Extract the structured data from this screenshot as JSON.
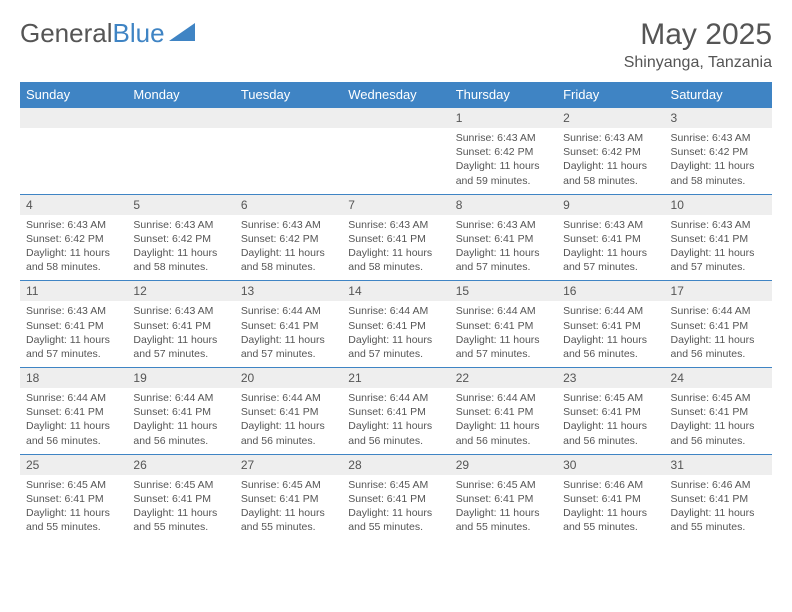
{
  "logo": {
    "text_left": "General",
    "text_right": "Blue"
  },
  "header": {
    "month_title": "May 2025",
    "location": "Shinyanga, Tanzania"
  },
  "weekdays": [
    "Sunday",
    "Monday",
    "Tuesday",
    "Wednesday",
    "Thursday",
    "Friday",
    "Saturday"
  ],
  "colors": {
    "header_bg": "#3f84c4",
    "header_text": "#ffffff",
    "daynum_bg": "#eeeeee",
    "text": "#555555",
    "cell_border": "#3f84c4"
  },
  "grid": [
    [
      {
        "day": "",
        "lines": []
      },
      {
        "day": "",
        "lines": []
      },
      {
        "day": "",
        "lines": []
      },
      {
        "day": "",
        "lines": []
      },
      {
        "day": "1",
        "lines": [
          "Sunrise: 6:43 AM",
          "Sunset: 6:42 PM",
          "Daylight: 11 hours",
          "and 59 minutes."
        ]
      },
      {
        "day": "2",
        "lines": [
          "Sunrise: 6:43 AM",
          "Sunset: 6:42 PM",
          "Daylight: 11 hours",
          "and 58 minutes."
        ]
      },
      {
        "day": "3",
        "lines": [
          "Sunrise: 6:43 AM",
          "Sunset: 6:42 PM",
          "Daylight: 11 hours",
          "and 58 minutes."
        ]
      }
    ],
    [
      {
        "day": "4",
        "lines": [
          "Sunrise: 6:43 AM",
          "Sunset: 6:42 PM",
          "Daylight: 11 hours",
          "and 58 minutes."
        ]
      },
      {
        "day": "5",
        "lines": [
          "Sunrise: 6:43 AM",
          "Sunset: 6:42 PM",
          "Daylight: 11 hours",
          "and 58 minutes."
        ]
      },
      {
        "day": "6",
        "lines": [
          "Sunrise: 6:43 AM",
          "Sunset: 6:42 PM",
          "Daylight: 11 hours",
          "and 58 minutes."
        ]
      },
      {
        "day": "7",
        "lines": [
          "Sunrise: 6:43 AM",
          "Sunset: 6:41 PM",
          "Daylight: 11 hours",
          "and 58 minutes."
        ]
      },
      {
        "day": "8",
        "lines": [
          "Sunrise: 6:43 AM",
          "Sunset: 6:41 PM",
          "Daylight: 11 hours",
          "and 57 minutes."
        ]
      },
      {
        "day": "9",
        "lines": [
          "Sunrise: 6:43 AM",
          "Sunset: 6:41 PM",
          "Daylight: 11 hours",
          "and 57 minutes."
        ]
      },
      {
        "day": "10",
        "lines": [
          "Sunrise: 6:43 AM",
          "Sunset: 6:41 PM",
          "Daylight: 11 hours",
          "and 57 minutes."
        ]
      }
    ],
    [
      {
        "day": "11",
        "lines": [
          "Sunrise: 6:43 AM",
          "Sunset: 6:41 PM",
          "Daylight: 11 hours",
          "and 57 minutes."
        ]
      },
      {
        "day": "12",
        "lines": [
          "Sunrise: 6:43 AM",
          "Sunset: 6:41 PM",
          "Daylight: 11 hours",
          "and 57 minutes."
        ]
      },
      {
        "day": "13",
        "lines": [
          "Sunrise: 6:44 AM",
          "Sunset: 6:41 PM",
          "Daylight: 11 hours",
          "and 57 minutes."
        ]
      },
      {
        "day": "14",
        "lines": [
          "Sunrise: 6:44 AM",
          "Sunset: 6:41 PM",
          "Daylight: 11 hours",
          "and 57 minutes."
        ]
      },
      {
        "day": "15",
        "lines": [
          "Sunrise: 6:44 AM",
          "Sunset: 6:41 PM",
          "Daylight: 11 hours",
          "and 57 minutes."
        ]
      },
      {
        "day": "16",
        "lines": [
          "Sunrise: 6:44 AM",
          "Sunset: 6:41 PM",
          "Daylight: 11 hours",
          "and 56 minutes."
        ]
      },
      {
        "day": "17",
        "lines": [
          "Sunrise: 6:44 AM",
          "Sunset: 6:41 PM",
          "Daylight: 11 hours",
          "and 56 minutes."
        ]
      }
    ],
    [
      {
        "day": "18",
        "lines": [
          "Sunrise: 6:44 AM",
          "Sunset: 6:41 PM",
          "Daylight: 11 hours",
          "and 56 minutes."
        ]
      },
      {
        "day": "19",
        "lines": [
          "Sunrise: 6:44 AM",
          "Sunset: 6:41 PM",
          "Daylight: 11 hours",
          "and 56 minutes."
        ]
      },
      {
        "day": "20",
        "lines": [
          "Sunrise: 6:44 AM",
          "Sunset: 6:41 PM",
          "Daylight: 11 hours",
          "and 56 minutes."
        ]
      },
      {
        "day": "21",
        "lines": [
          "Sunrise: 6:44 AM",
          "Sunset: 6:41 PM",
          "Daylight: 11 hours",
          "and 56 minutes."
        ]
      },
      {
        "day": "22",
        "lines": [
          "Sunrise: 6:44 AM",
          "Sunset: 6:41 PM",
          "Daylight: 11 hours",
          "and 56 minutes."
        ]
      },
      {
        "day": "23",
        "lines": [
          "Sunrise: 6:45 AM",
          "Sunset: 6:41 PM",
          "Daylight: 11 hours",
          "and 56 minutes."
        ]
      },
      {
        "day": "24",
        "lines": [
          "Sunrise: 6:45 AM",
          "Sunset: 6:41 PM",
          "Daylight: 11 hours",
          "and 56 minutes."
        ]
      }
    ],
    [
      {
        "day": "25",
        "lines": [
          "Sunrise: 6:45 AM",
          "Sunset: 6:41 PM",
          "Daylight: 11 hours",
          "and 55 minutes."
        ]
      },
      {
        "day": "26",
        "lines": [
          "Sunrise: 6:45 AM",
          "Sunset: 6:41 PM",
          "Daylight: 11 hours",
          "and 55 minutes."
        ]
      },
      {
        "day": "27",
        "lines": [
          "Sunrise: 6:45 AM",
          "Sunset: 6:41 PM",
          "Daylight: 11 hours",
          "and 55 minutes."
        ]
      },
      {
        "day": "28",
        "lines": [
          "Sunrise: 6:45 AM",
          "Sunset: 6:41 PM",
          "Daylight: 11 hours",
          "and 55 minutes."
        ]
      },
      {
        "day": "29",
        "lines": [
          "Sunrise: 6:45 AM",
          "Sunset: 6:41 PM",
          "Daylight: 11 hours",
          "and 55 minutes."
        ]
      },
      {
        "day": "30",
        "lines": [
          "Sunrise: 6:46 AM",
          "Sunset: 6:41 PM",
          "Daylight: 11 hours",
          "and 55 minutes."
        ]
      },
      {
        "day": "31",
        "lines": [
          "Sunrise: 6:46 AM",
          "Sunset: 6:41 PM",
          "Daylight: 11 hours",
          "and 55 minutes."
        ]
      }
    ]
  ]
}
